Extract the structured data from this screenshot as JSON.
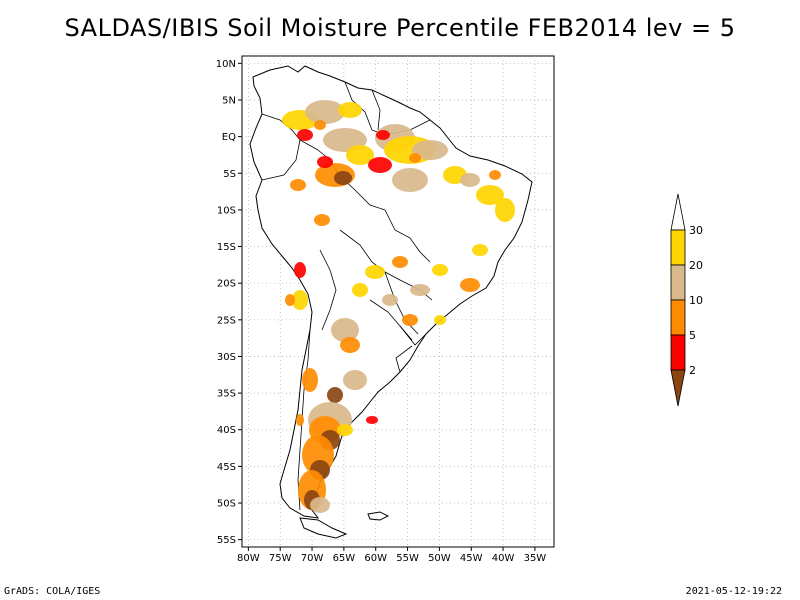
{
  "title": "SALDAS/IBIS Soil Moisture Percentile FEB2014 lev = 5",
  "footer_left": "GrADS: COLA/IGES",
  "footer_right": "2021-05-12-19:22",
  "map": {
    "lon_range": [
      -81,
      -32
    ],
    "lat_range": [
      -56,
      11
    ],
    "x_ticks": [
      "80W",
      "75W",
      "70W",
      "65W",
      "60W",
      "55W",
      "50W",
      "45W",
      "40W",
      "35W"
    ],
    "y_ticks": [
      "10N",
      "5N",
      "EQ",
      "5S",
      "10S",
      "15S",
      "20S",
      "25S",
      "30S",
      "35S",
      "40S",
      "45S",
      "50S",
      "55S"
    ]
  },
  "legend": {
    "labels": [
      "30",
      "20",
      "10",
      "5",
      "2"
    ],
    "colors": [
      "#ffd500",
      "#d9b88c",
      "#ff8c00",
      "#ff0000",
      "#8b4513"
    ],
    "tip_top_color": "#ffffff",
    "tip_bottom_color": "#8b4513"
  }
}
